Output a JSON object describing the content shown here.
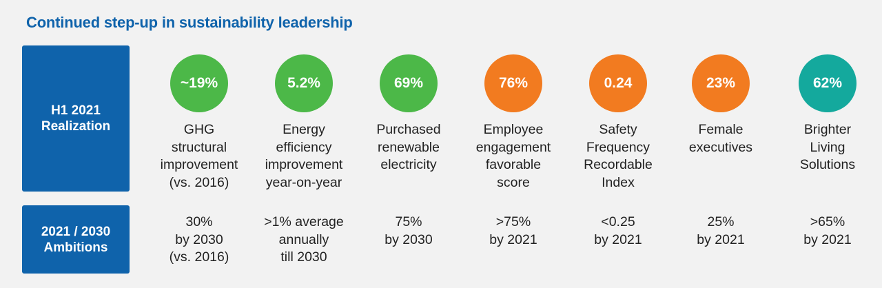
{
  "title": "Continued step-up in sustainability leadership",
  "row_labels": {
    "realization": "H1 2021\nRealization",
    "ambitions": "2021 / 2030\nAmbitions"
  },
  "colors": {
    "green": "#4cb848",
    "orange": "#f27b20",
    "teal": "#14a99d",
    "blue": "#0f63ab"
  },
  "metrics": [
    {
      "value": "~19%",
      "color": "green",
      "label": "GHG\nstructural\nimprovement\n(vs. 2016)",
      "ambition": "30%\nby 2030\n(vs. 2016)"
    },
    {
      "value": "5.2%",
      "color": "green",
      "label": "Energy\nefficiency\nimprovement\nyear-on-year",
      "ambition": ">1% average\nannually\ntill 2030"
    },
    {
      "value": "69%",
      "color": "green",
      "label": "Purchased\nrenewable\nelectricity",
      "ambition": "75%\nby 2030"
    },
    {
      "value": "76%",
      "color": "orange",
      "label": "Employee\nengagement\nfavorable\nscore",
      "ambition": ">75%\nby 2021"
    },
    {
      "value": "0.24",
      "color": "orange",
      "label": "Safety\nFrequency\nRecordable\nIndex",
      "ambition": "<0.25\nby 2021"
    },
    {
      "value": "23%",
      "color": "orange",
      "label": "Female\nexecutives",
      "ambition": "25%\nby 2021"
    },
    {
      "value": "62%",
      "color": "teal",
      "label": "Brighter\nLiving\nSolutions",
      "ambition": ">65%\nby 2021"
    }
  ]
}
